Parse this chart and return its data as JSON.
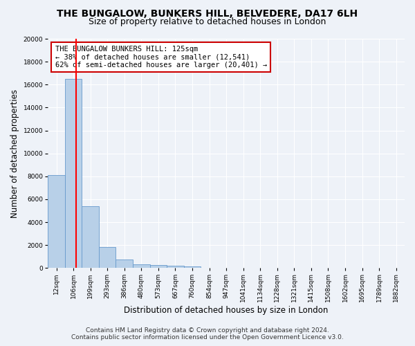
{
  "title": "THE BUNGALOW, BUNKERS HILL, BELVEDERE, DA17 6LH",
  "subtitle": "Size of property relative to detached houses in London",
  "xlabel": "Distribution of detached houses by size in London",
  "ylabel": "Number of detached properties",
  "categories": [
    "12sqm",
    "106sqm",
    "199sqm",
    "293sqm",
    "386sqm",
    "480sqm",
    "573sqm",
    "667sqm",
    "760sqm",
    "854sqm",
    "947sqm",
    "1041sqm",
    "1134sqm",
    "1228sqm",
    "1321sqm",
    "1415sqm",
    "1508sqm",
    "1602sqm",
    "1695sqm",
    "1789sqm",
    "1882sqm"
  ],
  "values": [
    8100,
    16500,
    5400,
    1850,
    750,
    350,
    250,
    200,
    150,
    0,
    0,
    0,
    0,
    0,
    0,
    0,
    0,
    0,
    0,
    0,
    0
  ],
  "bar_color": "#b8d0e8",
  "bar_edge_color": "#6699cc",
  "red_line_x": 1.15,
  "annotation_title": "THE BUNGALOW BUNKERS HILL: 125sqm",
  "annotation_line1": "← 38% of detached houses are smaller (12,541)",
  "annotation_line2": "62% of semi-detached houses are larger (20,401) →",
  "annotation_box_color": "#ffffff",
  "annotation_box_edge": "#cc0000",
  "ylim": [
    0,
    20000
  ],
  "yticks": [
    0,
    2000,
    4000,
    6000,
    8000,
    10000,
    12000,
    14000,
    16000,
    18000,
    20000
  ],
  "footer_line1": "Contains HM Land Registry data © Crown copyright and database right 2024.",
  "footer_line2": "Contains public sector information licensed under the Open Government Licence v3.0.",
  "bg_color": "#eef2f8",
  "grid_color": "#ffffff",
  "title_fontsize": 10,
  "subtitle_fontsize": 9,
  "axis_label_fontsize": 8.5,
  "tick_fontsize": 6.5,
  "annotation_fontsize": 7.5,
  "footer_fontsize": 6.5
}
